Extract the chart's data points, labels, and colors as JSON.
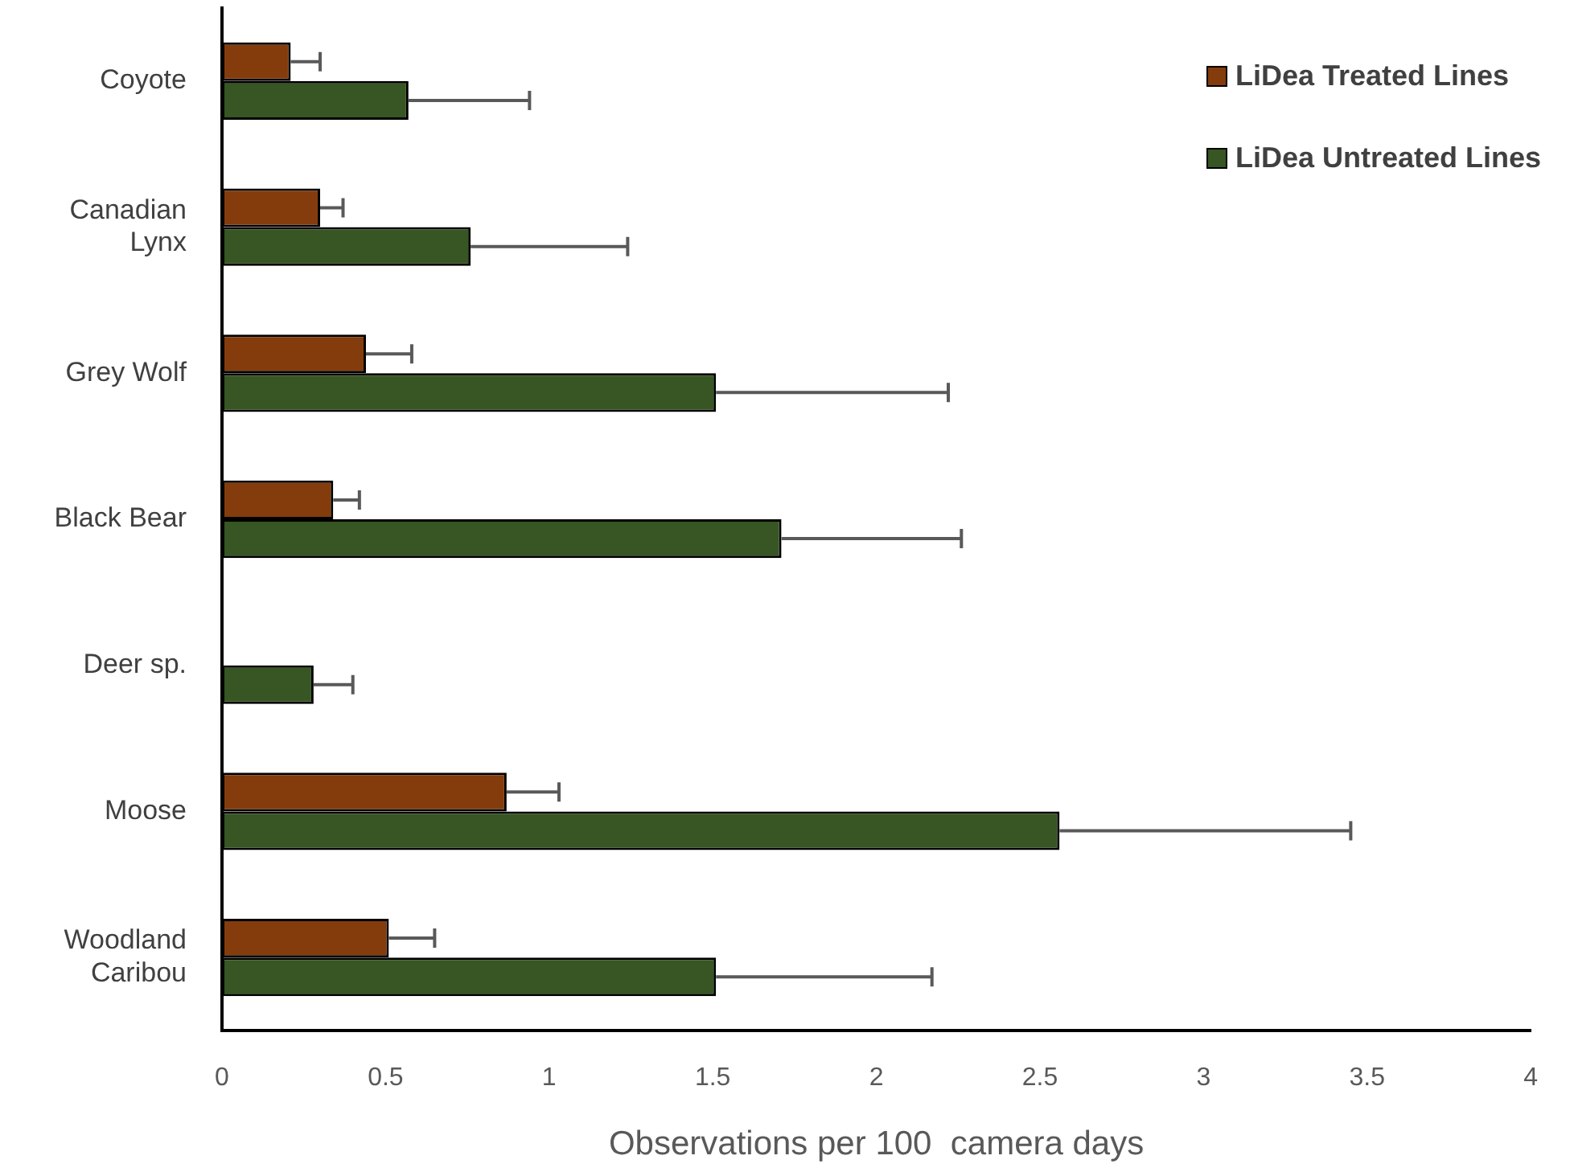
{
  "chart_data": {
    "type": "bar",
    "orientation": "horizontal",
    "xlabel": "Observations per 100  camera days",
    "categories": [
      "Coyote",
      "Canadian Lynx",
      "Grey Wolf",
      "Black Bear",
      "Deer sp.",
      "Moose",
      "Woodland Caribou"
    ],
    "series": [
      {
        "name": "LiDea Treated Lines",
        "color": "#843c0c",
        "values": [
          0.21,
          0.3,
          0.44,
          0.34,
          null,
          0.87,
          0.51
        ],
        "errors": [
          [
            0.21,
            0.3
          ],
          [
            0.3,
            0.37
          ],
          [
            0.44,
            0.58
          ],
          [
            0.34,
            0.42
          ],
          null,
          [
            0.87,
            1.03
          ],
          [
            0.51,
            0.65
          ]
        ]
      },
      {
        "name": "LiDea Untreated Lines",
        "color": "#375623",
        "values": [
          0.57,
          0.76,
          1.51,
          1.71,
          0.28,
          2.56,
          1.51
        ],
        "errors": [
          [
            0.57,
            0.94
          ],
          [
            0.76,
            1.24
          ],
          [
            1.51,
            2.22
          ],
          [
            1.71,
            2.26
          ],
          [
            0.28,
            0.4
          ],
          [
            2.56,
            3.45
          ],
          [
            1.51,
            2.17
          ]
        ]
      }
    ],
    "xlim": [
      0,
      4
    ],
    "xticks": [
      0,
      0.5,
      1,
      1.5,
      2,
      2.5,
      3,
      3.5,
      4
    ],
    "grid": false,
    "legend": "top right"
  }
}
